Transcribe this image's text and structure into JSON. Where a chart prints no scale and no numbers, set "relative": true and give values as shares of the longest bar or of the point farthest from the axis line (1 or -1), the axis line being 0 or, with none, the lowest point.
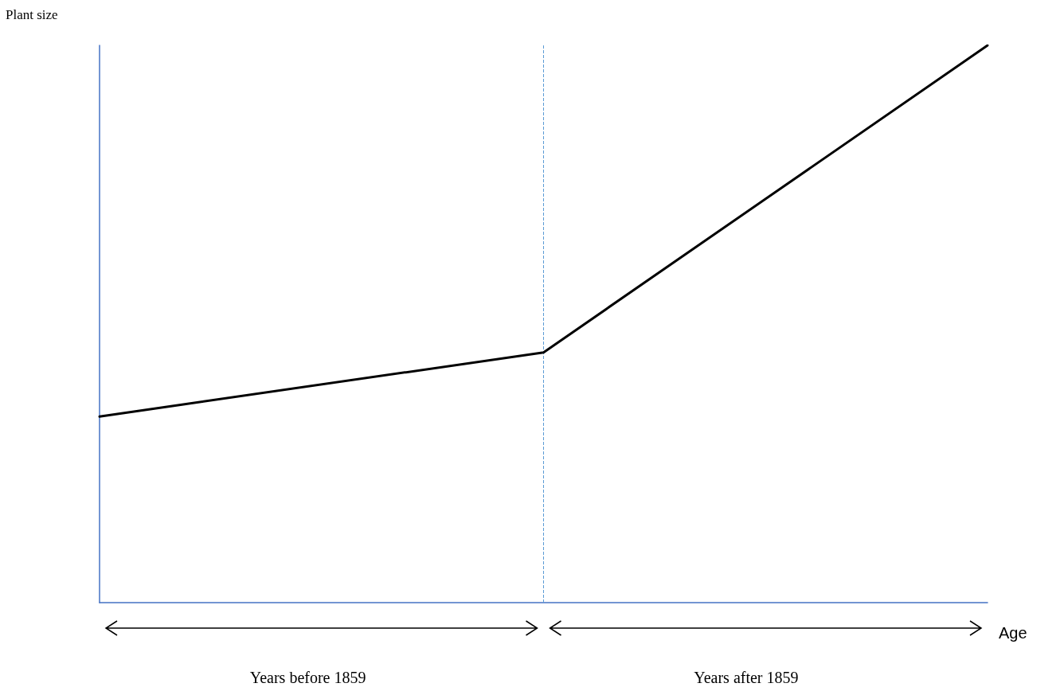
{
  "chart_data": {
    "type": "line",
    "relative": true,
    "ylabel": "Plant size",
    "xlabel": "Age",
    "categories": [
      null,
      null,
      null
    ],
    "series": [
      {
        "color": "#000000",
        "values": [
          0.334,
          0.449,
          1
        ]
      }
    ],
    "annotations": [
      "Years before 1859",
      "Years after 1859"
    ],
    "marker": "none",
    "line_style": "solid",
    "grid": false
  }
}
